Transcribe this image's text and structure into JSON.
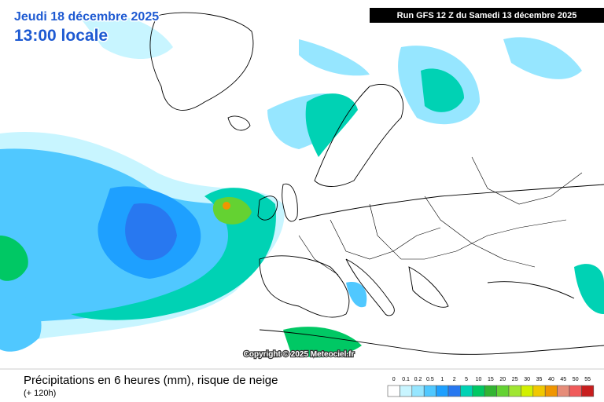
{
  "header": {
    "date": "Jeudi 18 décembre 2025",
    "time": "13:00 locale",
    "run": "Run GFS 12 Z du Samedi 13 décembre 2025"
  },
  "copyright": "Copyright © 2025 Meteociel.fr",
  "footer": {
    "title": "Précipitations en 6 heures (mm), risque de neige",
    "lead": "(+ 120h)"
  },
  "legend": {
    "items": [
      {
        "label": "0",
        "color": "#ffffff"
      },
      {
        "label": "0.1",
        "color": "#c8f5ff"
      },
      {
        "label": "0.2",
        "color": "#96e6ff"
      },
      {
        "label": "0.5",
        "color": "#50c8ff"
      },
      {
        "label": "1",
        "color": "#1ea0ff"
      },
      {
        "label": "2",
        "color": "#2878f0"
      },
      {
        "label": "5",
        "color": "#00d2b4"
      },
      {
        "label": "10",
        "color": "#00c864"
      },
      {
        "label": "15",
        "color": "#32b432"
      },
      {
        "label": "20",
        "color": "#64d232"
      },
      {
        "label": "25",
        "color": "#a0e632"
      },
      {
        "label": "30",
        "color": "#d2f000"
      },
      {
        "label": "35",
        "color": "#f0c800"
      },
      {
        "label": "40",
        "color": "#f09600"
      },
      {
        "label": "45",
        "color": "#e68c78"
      },
      {
        "label": "50",
        "color": "#f05a5a"
      },
      {
        "label": "55",
        "color": "#c81e1e"
      }
    ]
  }
}
